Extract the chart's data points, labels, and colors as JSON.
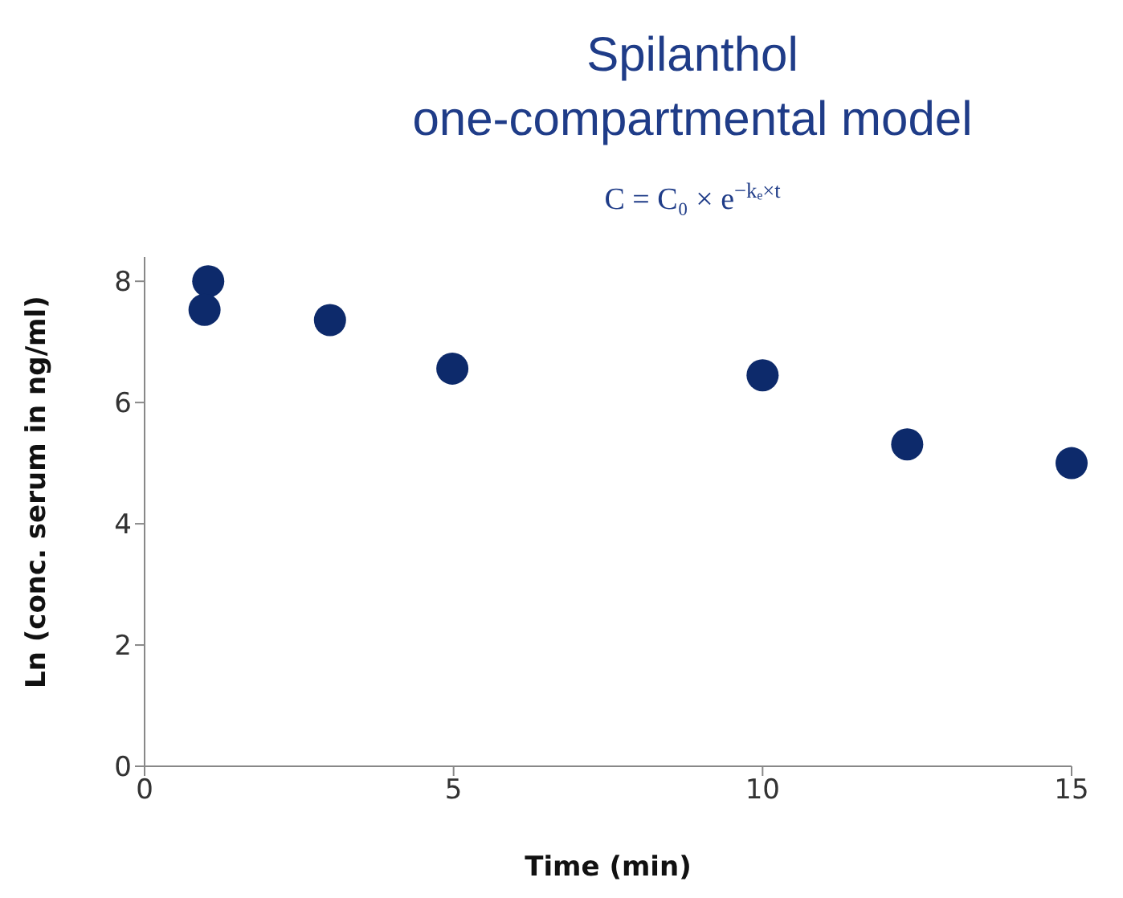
{
  "chart_data": {
    "type": "scatter",
    "title": "Spilanthol\none-compartmental model",
    "subtitle": "C = C₀ × e$^{−kₑ×t}$",
    "xlabel": "Time (min)",
    "ylabel": "Ln (conc. serum in ng/ml)",
    "x": [
      1.03,
      0.97,
      3.0,
      4.98,
      10.0,
      12.34,
      15.0
    ],
    "series": [
      {
        "color": "#0d2a6b",
        "values": [
          8.0,
          7.53,
          7.36,
          6.56,
          6.45,
          5.31,
          5.0
        ]
      }
    ],
    "xlim": [
      0,
      15
    ],
    "xticks": [
      0,
      5,
      10,
      15
    ],
    "ylim": [
      0,
      8.4
    ],
    "yticks": [
      0,
      2,
      4,
      6,
      8
    ],
    "grid": false,
    "legend": false,
    "marker": "circle"
  }
}
